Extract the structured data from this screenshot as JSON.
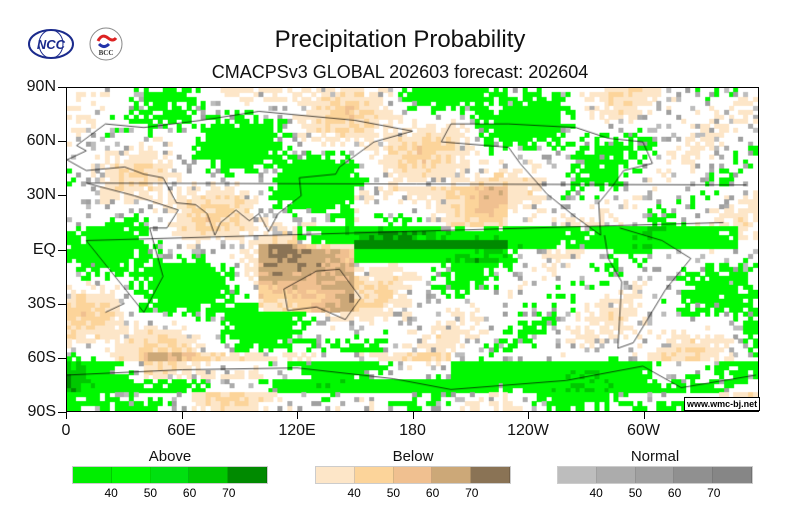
{
  "title": "Precipitation Probability",
  "subtitle": "CMACPSv3 GLOBAL 202603 forecast: 202604",
  "logos": {
    "left": "NCC",
    "right": "BCC"
  },
  "y_axis": [
    "90N",
    "60N",
    "30N",
    "EQ",
    "30S",
    "60S",
    "90S"
  ],
  "x_axis": [
    "0",
    "60E",
    "120E",
    "180",
    "120W",
    "60W"
  ],
  "credit": "www.wmc-bj.net",
  "legends": [
    {
      "label": "Above",
      "ticks": [
        "40",
        "50",
        "60",
        "70"
      ],
      "colors": [
        "#00ee00",
        "#00f800",
        "#00e010",
        "#00c800",
        "#008a00"
      ]
    },
    {
      "label": "Below",
      "ticks": [
        "40",
        "50",
        "60",
        "70"
      ],
      "colors": [
        "#fde6c8",
        "#fcd49a",
        "#f0c090",
        "#cca878",
        "#8a7355"
      ]
    },
    {
      "label": "Normal",
      "ticks": [
        "40",
        "50",
        "60",
        "70"
      ],
      "colors": [
        "#bdbdbd",
        "#acacac",
        "#a0a0a0",
        "#909090",
        "#868686"
      ]
    }
  ]
}
